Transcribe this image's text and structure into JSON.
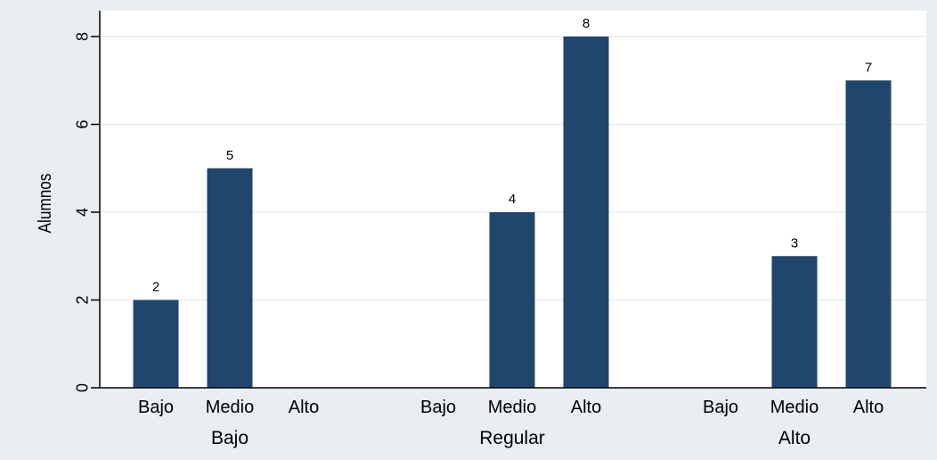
{
  "chart_data": {
    "type": "bar",
    "title": "",
    "xlabel": "",
    "ylabel": "Alumnos",
    "ylim": [
      0,
      8
    ],
    "yticks": [
      0,
      2,
      4,
      6,
      8
    ],
    "grid": true,
    "legend": "none",
    "colors": {
      "bar": "#1f466d",
      "outer_background": "#e8eef2",
      "plot_background": "#ffffff",
      "grid": "#e6edf1"
    },
    "groups": [
      {
        "label": "Bajo",
        "categories": [
          "Bajo",
          "Medio",
          "Alto"
        ],
        "values": [
          2,
          5,
          null
        ]
      },
      {
        "label": "Regular",
        "categories": [
          "Bajo",
          "Medio",
          "Alto"
        ],
        "values": [
          null,
          4,
          8
        ]
      },
      {
        "label": "Alto",
        "categories": [
          "Bajo",
          "Medio",
          "Alto"
        ],
        "values": [
          null,
          3,
          7
        ]
      }
    ]
  }
}
